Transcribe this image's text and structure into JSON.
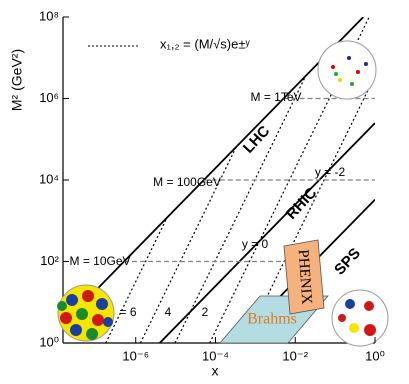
{
  "chart_data": {
    "type": "line",
    "xlabel": "x",
    "ylabel": "M² (GeV²)",
    "xscale": "log",
    "yscale": "log",
    "xlim": [
      1.5e-08,
      1
    ],
    "ylim": [
      1,
      100000000
    ],
    "xticks": [
      {
        "value": 1e-06,
        "label": "10⁻⁶"
      },
      {
        "value": 0.0001,
        "label": "10⁻⁴"
      },
      {
        "value": 0.01,
        "label": "10⁻²"
      },
      {
        "value": 1,
        "label": "10⁰"
      }
    ],
    "yticks": [
      {
        "value": 1,
        "label": "10⁰"
      },
      {
        "value": 100,
        "label": "10²"
      },
      {
        "value": 10000,
        "label": "10⁴"
      },
      {
        "value": 1000000,
        "label": "10⁶"
      },
      {
        "value": 100000000,
        "label": "10⁸"
      }
    ],
    "legend": "x₁,₂ = (M/√s)e±ʸ",
    "detectors": [
      "PHENIX",
      "Brahms"
    ],
    "series": [
      {
        "name": "LHC",
        "color": "#000000",
        "dash": "solid",
        "x": [
          1e-07,
          0.51
        ],
        "values": [
          19.6,
          100000000
        ]
      },
      {
        "name": "RHIC",
        "color": "#000000",
        "dash": "solid",
        "x": [
          4e-06,
          1
        ],
        "values": [
          1,
          250000
        ]
      },
      {
        "name": "SPS",
        "color": "#000000",
        "dash": "solid",
        "x": [
          0.0003,
          1
        ],
        "values": [
          1,
          3300
        ]
      },
      {
        "name": "= 6",
        "color": "#000000",
        "dash": "dotted",
        "x": [
          1.77e-07,
          6.1e-06
        ],
        "values": [
          1,
          1200
        ]
      },
      {
        "name": "4",
        "color": "#000000",
        "dash": "dotted",
        "x": [
          1.31e-06,
          0.000335
        ],
        "values": [
          1,
          66000
        ]
      },
      {
        "name": "2",
        "color": "#000000",
        "dash": "dotted",
        "x": [
          9.67e-06,
          0.0183
        ],
        "values": [
          1,
          3590000
        ]
      },
      {
        "name": "y = 0",
        "color": "#000000",
        "dash": "dotted",
        "x": [
          7.14e-05,
          0.714
        ],
        "values": [
          1,
          100000000
        ]
      },
      {
        "name": "y = -2",
        "color": "#000000",
        "dash": "dotted",
        "x": [
          0.000528,
          1
        ],
        "values": [
          1,
          3590000
        ]
      },
      {
        "name": "M = 10GeV",
        "color": "#808080",
        "dash": "dashed",
        "x": [
          5.1e-07,
          0.025
        ],
        "values": [
          100,
          100
        ]
      },
      {
        "name": "M = 100GeV",
        "color": "#808080",
        "dash": "dashed",
        "x": [
          5.1e-05,
          1
        ],
        "values": [
          10000,
          10000
        ]
      },
      {
        "name": "M = 1TeV",
        "color": "#808080",
        "dash": "dashed",
        "x": [
          0.0051,
          1
        ],
        "values": [
          1000000,
          1000000
        ]
      }
    ]
  }
}
